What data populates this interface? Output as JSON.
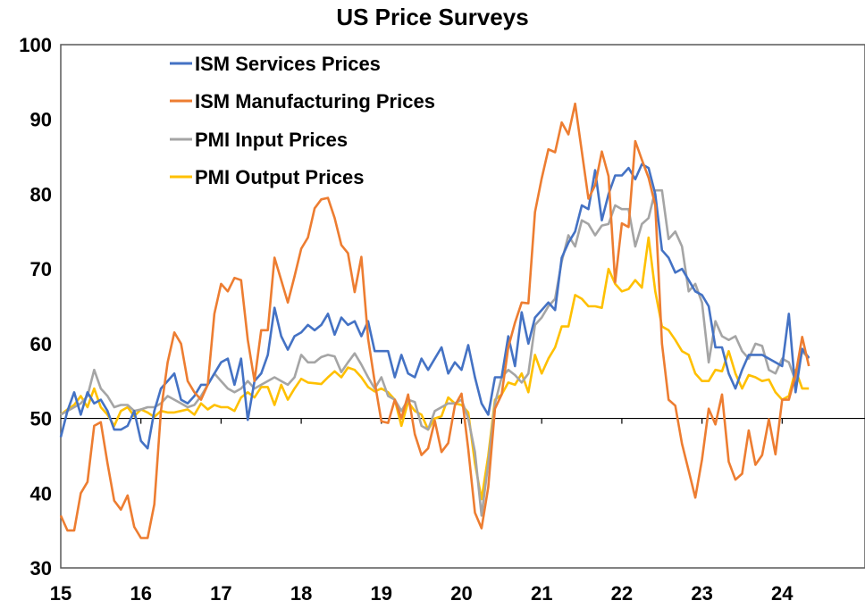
{
  "chart_data": {
    "type": "line",
    "title": "US Price Surveys",
    "xlabel": "",
    "ylabel": "",
    "x_start": "2015-01",
    "x_frequency": "monthly",
    "x_tick_labels": [
      "15",
      "16",
      "17",
      "18",
      "19",
      "20",
      "21",
      "22",
      "23",
      "24"
    ],
    "y_tick_labels": [
      "30",
      "40",
      "50",
      "60",
      "70",
      "80",
      "90",
      "100"
    ],
    "ylim": [
      30,
      100
    ],
    "reference_line": 50,
    "grid": false,
    "legend_position": "top-left",
    "series": [
      {
        "name": "ISM Services Prices",
        "color": "#4472C4",
        "values": [
          47.5,
          51,
          53.5,
          50.5,
          53.5,
          52,
          52.5,
          51,
          48.5,
          48.5,
          49,
          51,
          47,
          46,
          51,
          54,
          55,
          56,
          52.5,
          52,
          53,
          54.5,
          54.5,
          56,
          57.5,
          58,
          54.5,
          58,
          49.8,
          55,
          56,
          58.5,
          64.8,
          61,
          59.2,
          61,
          61.5,
          62.5,
          61.8,
          62.5,
          64,
          61.2,
          63.5,
          62.5,
          63,
          61,
          63,
          59,
          59,
          59,
          55.5,
          58.5,
          56,
          55.5,
          58,
          56.5,
          58,
          59.5,
          56,
          57.5,
          56.5,
          59.8,
          55.5,
          52,
          50.5,
          55.5,
          55.5,
          61,
          57,
          64.2,
          60,
          63.5,
          64.5,
          65.5,
          64.5,
          71.5,
          73.5,
          75,
          78.5,
          78,
          83.2,
          76.5,
          80,
          82.5,
          82.5,
          83.5,
          82,
          84,
          83.5,
          80,
          72.5,
          71.5,
          69.5,
          70,
          68.5,
          67,
          66.5,
          65,
          59.5,
          59.5,
          56,
          54,
          56.5,
          58.5,
          58.5,
          58.5,
          58,
          57.5,
          57,
          64,
          53.5,
          59.3,
          58.1
        ]
      },
      {
        "name": "ISM Manufacturing Prices",
        "color": "#ED7D31",
        "values": [
          37,
          35,
          35,
          40,
          41.5,
          49,
          49.5,
          44,
          39,
          37.8,
          39.7,
          35.5,
          34,
          34,
          38.5,
          51,
          57.5,
          61.5,
          60,
          55,
          53.5,
          52.5,
          54.5,
          64,
          68,
          67,
          68.8,
          68.5,
          60.5,
          55,
          61.8,
          61.8,
          71.5,
          68.5,
          65.5,
          69,
          72.7,
          74.2,
          78.1,
          79.3,
          79.5,
          76.8,
          73.2,
          72.1,
          66.9,
          71.6,
          60.7,
          54.9,
          49.6,
          49.4,
          52.5,
          50,
          53.2,
          47.9,
          45.1,
          46,
          49.7,
          45.5,
          46.7,
          51.7,
          53.3,
          45.9,
          37.4,
          35.3,
          40.8,
          51.3,
          53.2,
          59.5,
          62.8,
          65.5,
          65.4,
          77.6,
          82.1,
          86,
          85.6,
          89.6,
          88,
          92.1,
          85.7,
          79.4,
          81.2,
          85.7,
          82.4,
          68.2,
          76.1,
          75.6,
          87.1,
          84.6,
          82.2,
          78.5,
          60,
          52.5,
          51.7,
          46.6,
          43,
          39.4,
          44.5,
          51.3,
          49.2,
          53.2,
          44.2,
          41.8,
          42.6,
          48.4,
          43.8,
          45.1,
          49.9,
          45.2,
          52.5,
          52.5,
          55.8,
          60.9,
          57
        ]
      },
      {
        "name": "PMI Input Prices",
        "color": "#A5A5A5",
        "values": [
          50.5,
          51,
          51.5,
          52,
          53,
          56.5,
          54,
          53,
          51.5,
          51.8,
          51.8,
          51,
          51.2,
          51.5,
          51.5,
          52,
          53,
          52.5,
          52,
          51.5,
          51.8,
          53,
          54.5,
          56,
          55,
          54,
          53.5,
          54,
          55,
          54,
          54.5,
          55,
          55.5,
          55,
          54.5,
          55.5,
          58.5,
          57.5,
          57.5,
          58.2,
          58.5,
          58.3,
          56.2,
          57.5,
          58.7,
          57.2,
          55.5,
          54,
          55.5,
          53,
          52.5,
          51,
          52.5,
          52.2,
          49,
          48.5,
          51,
          51.5,
          52,
          52,
          52.5,
          50,
          45.5,
          37,
          44,
          52,
          55.5,
          56.5,
          55.8,
          54.8,
          56,
          62.5,
          63.5,
          65,
          66,
          71,
          74.5,
          73,
          76.5,
          76,
          74.5,
          75.8,
          76,
          78.5,
          78,
          78,
          73,
          76,
          76.8,
          80.5,
          80.5,
          74,
          75,
          73,
          67,
          68,
          65.5,
          57.5,
          63,
          61,
          60.5,
          61,
          59,
          58,
          60,
          59.7,
          56.5,
          56,
          58,
          57.5,
          55,
          59,
          58
        ]
      },
      {
        "name": "PMI Output Prices",
        "color": "#FFC000",
        "values": [
          50.5,
          51.2,
          51.8,
          53,
          51.5,
          54,
          51.5,
          50.5,
          49,
          51,
          51.5,
          50.3,
          51.2,
          50.8,
          50.2,
          51,
          50.8,
          50.8,
          51,
          51.2,
          50.5,
          52,
          51.2,
          51.8,
          51.5,
          51.5,
          51,
          52.8,
          53.5,
          52.8,
          54.2,
          54.2,
          51.8,
          54.5,
          52.5,
          54,
          55.3,
          54.8,
          54.7,
          54.6,
          55.5,
          56.3,
          55.5,
          56.8,
          56.5,
          55.5,
          54.2,
          53.6,
          54,
          53.5,
          52.5,
          49,
          52.2,
          51,
          50.5,
          48.5,
          50,
          50.3,
          52.8,
          52,
          51.8,
          50.8,
          44,
          39.2,
          45,
          52.5,
          53.2,
          54.8,
          54.5,
          56,
          53.5,
          58.5,
          56,
          58,
          59.5,
          62.3,
          62.3,
          66.5,
          66,
          65,
          65,
          64.8,
          70,
          68,
          67,
          67.3,
          68.5,
          67.5,
          74.2,
          67,
          62.3,
          61.8,
          60.5,
          59,
          58.5,
          56,
          55,
          55,
          56.5,
          56.3,
          59,
          56,
          54,
          55.8,
          55.5,
          55,
          55.2,
          53.5,
          52.5,
          53,
          56.5,
          54,
          54
        ]
      }
    ]
  }
}
